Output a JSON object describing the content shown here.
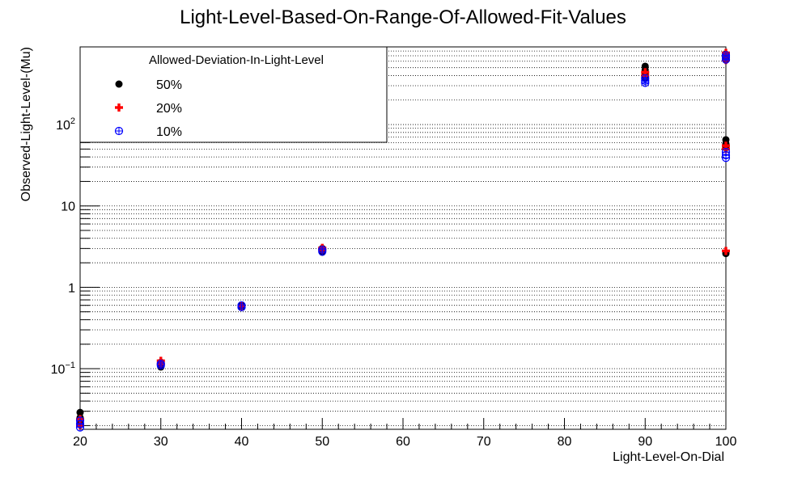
{
  "chart_data": {
    "type": "scatter",
    "title": "Light-Level-Based-On-Range-Of-Allowed-Fit-Values",
    "xlabel": "Light-Level-On-Dial",
    "ylabel": "Observed-Light-Level-(Mu)",
    "x_range": [
      20,
      100
    ],
    "y_range": [
      0.018,
      900
    ],
    "y_scale": "log",
    "grid": "horizontal dotted lines on y minor ticks",
    "x_ticks": [
      "20",
      "30",
      "40",
      "50",
      "60",
      "70",
      "80",
      "90",
      "100"
    ],
    "y_ticks": [
      {
        "value": 0.1,
        "base": "10",
        "exp": "−1"
      },
      {
        "value": 1,
        "label": "1"
      },
      {
        "value": 10,
        "label": "10"
      },
      {
        "value": 100,
        "base": "10",
        "exp": "2"
      }
    ],
    "legend": {
      "title": "Allowed-Deviation-In-Light-Level",
      "position": "top-left"
    },
    "series": [
      {
        "name": "50%",
        "color": "#000000",
        "marker": "filled-circle",
        "points": [
          [
            20,
            0.029
          ],
          [
            20,
            0.025
          ],
          [
            20,
            0.021
          ],
          [
            30,
            0.12
          ],
          [
            30,
            0.11
          ],
          [
            30,
            0.105
          ],
          [
            40,
            0.6
          ],
          [
            40,
            0.58
          ],
          [
            50,
            3.0
          ],
          [
            50,
            2.85
          ],
          [
            50,
            2.7
          ],
          [
            90,
            520
          ],
          [
            90,
            470
          ],
          [
            90,
            420
          ],
          [
            90,
            370
          ],
          [
            100,
            730
          ],
          [
            100,
            680
          ],
          [
            100,
            640
          ],
          [
            100,
            65
          ],
          [
            100,
            58
          ],
          [
            100,
            52
          ],
          [
            100,
            2.6
          ]
        ]
      },
      {
        "name": "20%",
        "color": "#ff0000",
        "marker": "plus",
        "points": [
          [
            20,
            0.024
          ],
          [
            20,
            0.02
          ],
          [
            30,
            0.125
          ],
          [
            30,
            0.115
          ],
          [
            40,
            0.59
          ],
          [
            50,
            3.05
          ],
          [
            50,
            2.9
          ],
          [
            90,
            440
          ],
          [
            90,
            400
          ],
          [
            100,
            760
          ],
          [
            100,
            700
          ],
          [
            100,
            620
          ],
          [
            100,
            55
          ],
          [
            100,
            50
          ],
          [
            100,
            2.8
          ]
        ]
      },
      {
        "name": "10%",
        "color": "#0000ff",
        "marker": "circle-plus",
        "points": [
          [
            20,
            0.023
          ],
          [
            20,
            0.021
          ],
          [
            20,
            0.019
          ],
          [
            30,
            0.115
          ],
          [
            30,
            0.11
          ],
          [
            40,
            0.6
          ],
          [
            40,
            0.57
          ],
          [
            50,
            2.9
          ],
          [
            50,
            2.75
          ],
          [
            90,
            370
          ],
          [
            90,
            345
          ],
          [
            90,
            325
          ],
          [
            100,
            710
          ],
          [
            100,
            670
          ],
          [
            100,
            630
          ],
          [
            100,
            46
          ],
          [
            100,
            42
          ],
          [
            100,
            39
          ]
        ]
      }
    ]
  }
}
